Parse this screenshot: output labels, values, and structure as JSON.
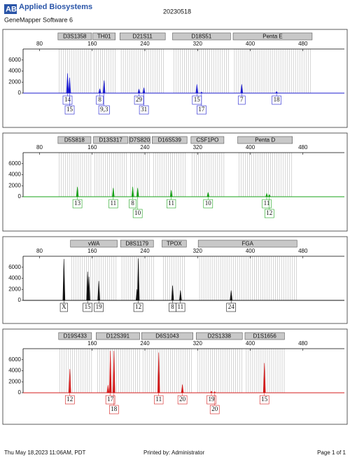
{
  "header": {
    "brand": "Applied Biosystems",
    "software": "GeneMapper Software 6",
    "date": "20230518"
  },
  "footer": {
    "timestamp": "Thu May 18,2023 11:06AM, PDT",
    "printed_by": "Printed by: Administrator",
    "page": "Page 1 of 1"
  },
  "chart_data": [
    {
      "type": "peaks",
      "color": "#1c1ccf",
      "xlim": [
        55,
        543
      ],
      "xticks": [
        80,
        160,
        240,
        320,
        400,
        480
      ],
      "ylim": [
        0,
        8000
      ],
      "yticks": [
        0,
        2000,
        4000,
        6000
      ],
      "markers": [
        {
          "name": "D3S1358",
          "range": [
            108,
            159
          ]
        },
        {
          "name": "TH01",
          "range": [
            161,
            195
          ]
        },
        {
          "name": "D21S11",
          "range": [
            202,
            271
          ]
        },
        {
          "name": "D18S51",
          "range": [
            282,
            370
          ]
        },
        {
          "name": "Penta E",
          "range": [
            374,
            494
          ]
        }
      ],
      "peaks": {
        "x": [
          122.5,
          125.7,
          171.5,
          178,
          231,
          238.5,
          319,
          326,
          387,
          440
        ],
        "values": [
          3600,
          2800,
          800,
          2300,
          700,
          1000,
          1600,
          200,
          1600,
          300
        ]
      },
      "alleles": {
        "x": [
          122.5,
          125.7,
          171.5,
          178,
          231,
          238.5,
          319,
          326,
          387,
          440
        ],
        "labels": [
          "14",
          "15",
          "8",
          "9,3",
          "29",
          "31",
          "15",
          "17",
          "7",
          "18"
        ]
      }
    },
    {
      "type": "peaks",
      "color": "#1aa31a",
      "xlim": [
        55,
        543
      ],
      "xticks": [
        80,
        160,
        240,
        320,
        400,
        480
      ],
      "ylim": [
        0,
        8000
      ],
      "yticks": [
        0,
        2000,
        4000,
        6000
      ],
      "markers": [
        {
          "name": "D5S818",
          "range": [
            108,
            158
          ]
        },
        {
          "name": "D13S317",
          "range": [
            162,
            214
          ]
        },
        {
          "name": "D7S820",
          "range": [
            216,
            248
          ]
        },
        {
          "name": "D16S539",
          "range": [
            251,
            304
          ]
        },
        {
          "name": "CSF1PO",
          "range": [
            310,
            360
          ]
        },
        {
          "name": "Penta D",
          "range": [
            381,
            464
          ]
        }
      ],
      "peaks": {
        "x": [
          137.5,
          192,
          221.5,
          229,
          280,
          336,
          425,
          429
        ],
        "values": [
          1800,
          1600,
          1800,
          1600,
          1200,
          800,
          600,
          400
        ]
      },
      "alleles": {
        "x": [
          137.5,
          192,
          221.5,
          229,
          280,
          336,
          425,
          429
        ],
        "labels": [
          "13",
          "11",
          "8",
          "10",
          "11",
          "10",
          "11",
          "12"
        ]
      }
    },
    {
      "type": "peaks",
      "color": "#111111",
      "xlim": [
        55,
        543
      ],
      "xticks": [
        80,
        160,
        240,
        320,
        400,
        480
      ],
      "ylim": [
        0,
        8000
      ],
      "yticks": [
        0,
        2000,
        4000,
        6000
      ],
      "markers": [
        {
          "name": "vWA",
          "range": [
            127,
            198
          ]
        },
        {
          "name": "D8S1179",
          "range": [
            203,
            253
          ]
        },
        {
          "name": "TPOX",
          "range": [
            266,
            303
          ]
        },
        {
          "name": "FGA",
          "range": [
            321,
            471
          ]
        }
      ],
      "peaks": {
        "x": [
          117,
          153,
          155,
          170,
          228,
          230,
          282,
          294,
          371
        ],
        "values": [
          7500,
          5200,
          4300,
          3500,
          2000,
          7600,
          2700,
          1800,
          1800
        ]
      },
      "alleles": {
        "x": [
          117,
          153,
          170,
          230,
          282,
          294,
          371
        ],
        "labels": [
          "X",
          "15",
          "19",
          "12",
          "8",
          "11",
          "24"
        ]
      }
    },
    {
      "type": "peaks",
      "color": "#d41c1c",
      "xlim": [
        55,
        543
      ],
      "xticks": [
        160,
        240,
        320,
        400,
        480
      ],
      "ylim": [
        0,
        8000
      ],
      "yticks": [
        0,
        2000,
        4000,
        6000
      ],
      "markers": [
        {
          "name": "D19S433",
          "range": [
            109,
            159
          ]
        },
        {
          "name": "D12S391",
          "range": [
            166,
            232
          ]
        },
        {
          "name": "D6S1043",
          "range": [
            235,
            313
          ]
        },
        {
          "name": "D2S1338",
          "range": [
            318,
            388
          ]
        },
        {
          "name": "D1S1656",
          "range": [
            392,
            452
          ]
        }
      ],
      "peaks": {
        "x": [
          126,
          184,
          187.5,
          193,
          261,
          297,
          341,
          346,
          421.5
        ],
        "values": [
          4300,
          1400,
          7600,
          7600,
          7300,
          1500,
          300,
          200,
          5400
        ]
      },
      "alleles": {
        "x": [
          126,
          187.5,
          193,
          261,
          297,
          341,
          346,
          421.5
        ],
        "labels": [
          "12",
          "17",
          "18",
          "11",
          "20",
          "19",
          "20",
          "15"
        ]
      }
    }
  ]
}
